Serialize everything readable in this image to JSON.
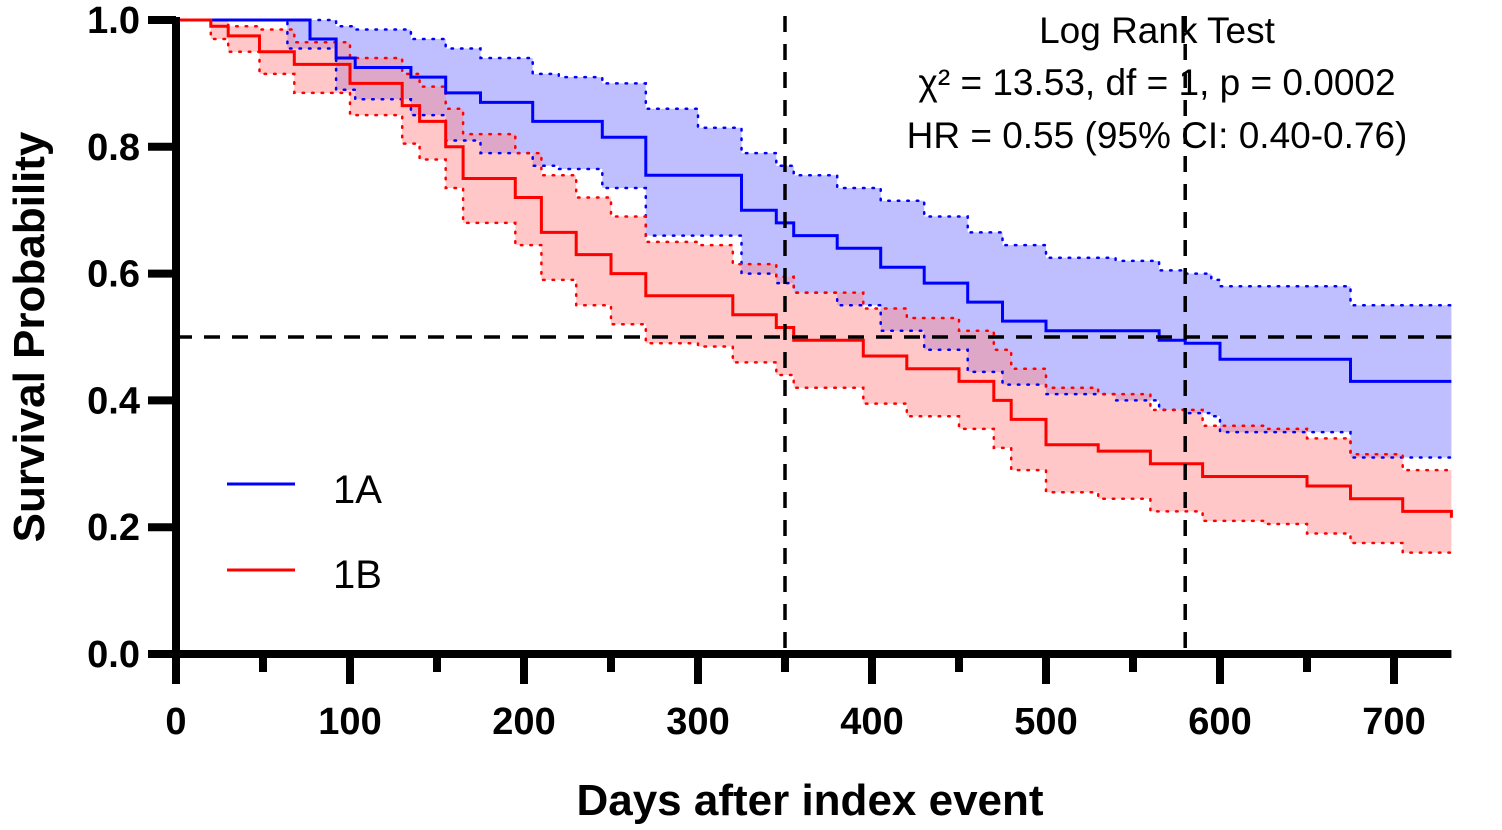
{
  "chart_data": {
    "type": "line",
    "subtype": "kaplan-meier",
    "title": "",
    "xlabel": "Days after index event",
    "ylabel": "Survival Probability",
    "xlim": [
      0,
      733
    ],
    "ylim": [
      0,
      1.0
    ],
    "x_ticks": [
      0,
      100,
      200,
      300,
      400,
      500,
      600,
      700
    ],
    "x_ticks_minor": [
      50,
      150,
      250,
      350,
      450,
      550,
      650
    ],
    "x_tick_labels": [
      "0",
      "100",
      "200",
      "300",
      "400",
      "500",
      "600",
      "700"
    ],
    "y_ticks": [
      0.0,
      0.2,
      0.4,
      0.6,
      0.8,
      1.0
    ],
    "y_tick_labels": [
      "0.0",
      "0.2",
      "0.4",
      "0.6",
      "0.8",
      "1.0"
    ],
    "grid": false,
    "legend": {
      "placement": "lower-left",
      "entries": [
        "1A",
        "1B"
      ]
    },
    "reference_lines": [
      {
        "orientation": "horizontal",
        "value": 0.5,
        "style": "dashed",
        "color": "#000000"
      },
      {
        "orientation": "vertical",
        "value": 350,
        "style": "dashed",
        "color": "#000000"
      },
      {
        "orientation": "vertical",
        "value": 580,
        "style": "dashed",
        "color": "#000000"
      }
    ],
    "annotations": [
      "Log Rank Test",
      "χ² = 13.53, df = 1, p = 0.0002",
      "HR = 0.55 (95% CI: 0.40-0.76)"
    ],
    "series": [
      {
        "name": "1A",
        "color": "#0000ff",
        "band_color": "#8080ff",
        "x": [
          0,
          64,
          77,
          92,
          103,
          135,
          155,
          175,
          205,
          220,
          245,
          270,
          300,
          325,
          345,
          355,
          380,
          405,
          430,
          455,
          475,
          500,
          540,
          565,
          580,
          595,
          600,
          670,
          675,
          733
        ],
        "y": [
          1.0,
          1.0,
          0.97,
          0.94,
          0.925,
          0.91,
          0.885,
          0.87,
          0.84,
          0.84,
          0.815,
          0.755,
          0.755,
          0.7,
          0.68,
          0.66,
          0.64,
          0.61,
          0.585,
          0.555,
          0.525,
          0.51,
          0.51,
          0.495,
          0.49,
          0.49,
          0.465,
          0.465,
          0.43,
          0.43
        ],
        "ci_upper": [
          1.0,
          1.0,
          1.0,
          0.99,
          0.985,
          0.97,
          0.955,
          0.94,
          0.915,
          0.91,
          0.9,
          0.86,
          0.83,
          0.79,
          0.77,
          0.755,
          0.735,
          0.715,
          0.69,
          0.665,
          0.645,
          0.625,
          0.62,
          0.605,
          0.6,
          0.59,
          0.58,
          0.58,
          0.55,
          0.55
        ],
        "ci_lower": [
          1.0,
          0.955,
          0.955,
          0.89,
          0.875,
          0.85,
          0.81,
          0.79,
          0.77,
          0.765,
          0.735,
          0.66,
          0.66,
          0.6,
          0.585,
          0.57,
          0.55,
          0.51,
          0.48,
          0.445,
          0.425,
          0.41,
          0.4,
          0.385,
          0.38,
          0.375,
          0.35,
          0.35,
          0.31,
          0.31
        ]
      },
      {
        "name": "1B",
        "color": "#ff0000",
        "band_color": "#ff9090",
        "x": [
          0,
          20,
          30,
          48,
          68,
          100,
          130,
          140,
          155,
          165,
          195,
          210,
          230,
          250,
          270,
          300,
          320,
          345,
          355,
          395,
          420,
          450,
          470,
          480,
          500,
          530,
          560,
          590,
          625,
          650,
          675,
          705,
          733
        ],
        "y": [
          1.0,
          0.99,
          0.975,
          0.95,
          0.93,
          0.9,
          0.865,
          0.84,
          0.8,
          0.75,
          0.72,
          0.665,
          0.63,
          0.6,
          0.565,
          0.565,
          0.535,
          0.515,
          0.495,
          0.47,
          0.45,
          0.43,
          0.4,
          0.37,
          0.33,
          0.32,
          0.3,
          0.28,
          0.28,
          0.265,
          0.245,
          0.225,
          0.215
        ],
        "ci_upper": [
          1.0,
          1.0,
          0.99,
          0.985,
          0.965,
          0.94,
          0.915,
          0.895,
          0.86,
          0.82,
          0.79,
          0.755,
          0.72,
          0.69,
          0.65,
          0.645,
          0.615,
          0.595,
          0.57,
          0.545,
          0.53,
          0.51,
          0.48,
          0.45,
          0.42,
          0.41,
          0.385,
          0.36,
          0.355,
          0.34,
          0.315,
          0.29,
          0.285
        ],
        "ci_lower": [
          1.0,
          0.97,
          0.95,
          0.915,
          0.885,
          0.85,
          0.805,
          0.78,
          0.735,
          0.68,
          0.645,
          0.59,
          0.55,
          0.52,
          0.49,
          0.485,
          0.46,
          0.44,
          0.42,
          0.395,
          0.375,
          0.355,
          0.325,
          0.29,
          0.255,
          0.245,
          0.225,
          0.21,
          0.205,
          0.19,
          0.175,
          0.16,
          0.15
        ]
      }
    ]
  }
}
